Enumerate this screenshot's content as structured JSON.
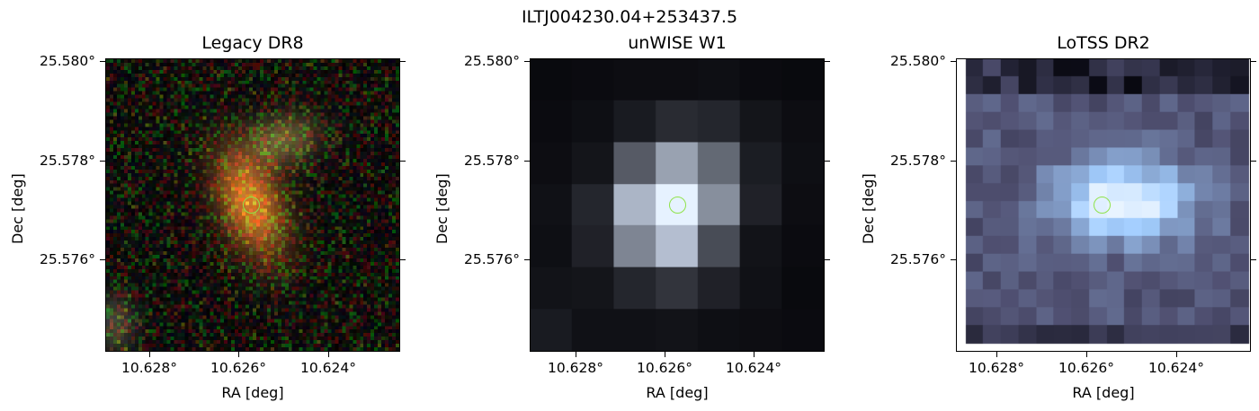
{
  "suptitle": "ILTJ004230.04+253437.5",
  "panels": [
    {
      "title": "Legacy DR8",
      "xlabel": "RA [deg]",
      "ylabel": "Dec [deg]",
      "yticks": [
        "25.580°",
        "25.578°",
        "25.576°"
      ],
      "xticks": [
        "10.628°",
        "10.626°",
        "10.624°"
      ],
      "image": "rgb-optical-cutout"
    },
    {
      "title": "unWISE W1",
      "xlabel": "RA [deg]",
      "ylabel": "Dec [deg]",
      "yticks": [
        "25.580°",
        "25.578°",
        "25.576°"
      ],
      "xticks": [
        "10.628°",
        "10.626°",
        "10.624°"
      ],
      "image": "greyscale-infrared-cutout"
    },
    {
      "title": "LoTSS DR2",
      "xlabel": "RA [deg]",
      "ylabel": "Dec [deg]",
      "yticks": [
        "25.580°",
        "25.578°",
        "25.576°"
      ],
      "xticks": [
        "10.628°",
        "10.626°",
        "10.624°"
      ],
      "image": "bone-colormap-radio-cutout"
    }
  ],
  "marker_color": "#8fe34a"
}
